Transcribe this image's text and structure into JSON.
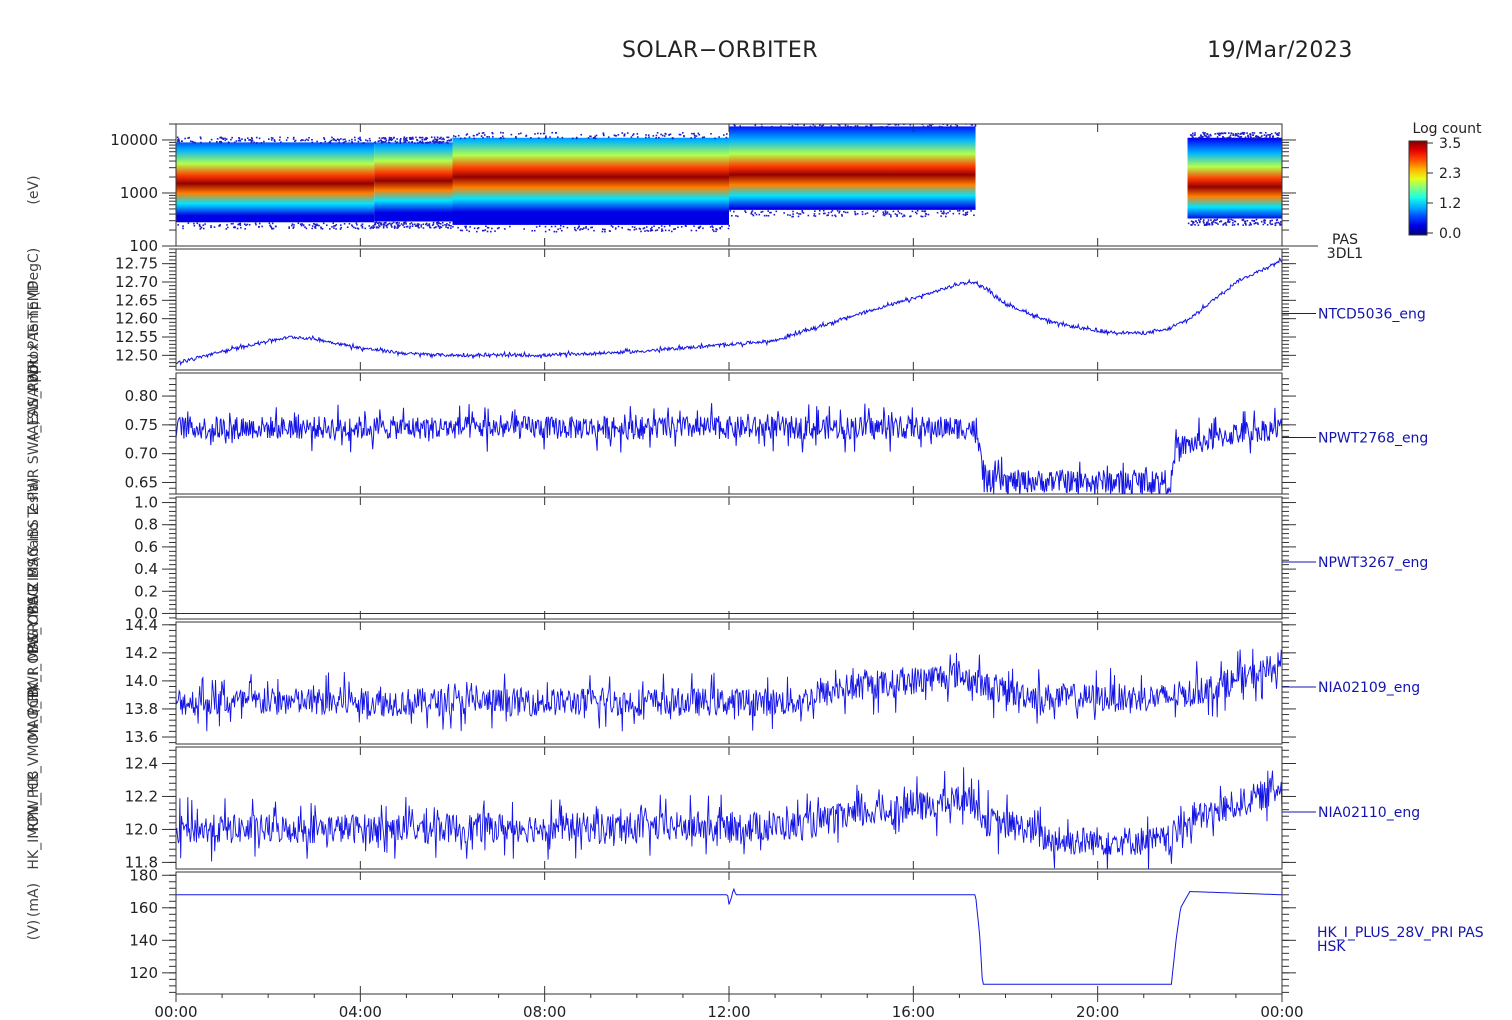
{
  "header": {
    "title": "SOLAR−ORBITER",
    "date": "19/Mar/2023"
  },
  "chart_data": {
    "type": "line",
    "x_tick_labels": [
      "00:00",
      "04:00",
      "08:00",
      "12:00",
      "16:00",
      "20:00",
      "00:00"
    ],
    "x_range_hours": [
      0,
      24
    ],
    "left_axis_labels": [
      "(eV)",
      "Approx Temp (DegC)",
      "(A)",
      "SWA PDU PAS TEMP",
      "PWR SWA_EAS_PWR",
      "(nano Tesla)",
      "PWR MAG IBS Z",
      "PWR MAG IBS Y",
      "PWR MAG OBS Z",
      "MAG_HK_I_OBS_Y",
      "(nT)",
      "RPW_HK_VMON_PCB",
      "HK_IMON_PCB",
      "(mA)",
      "(V)"
    ],
    "panels": [
      {
        "kind": "spectrogram",
        "name": "PAS 3DL1",
        "right_label_lines": [
          "PAS",
          "3DL1"
        ],
        "y_scale": "log",
        "y_range": [
          100,
          20000
        ],
        "y_ticks": [
          "10000",
          "1000",
          "100"
        ],
        "colorbar": {
          "title": "Log count",
          "ticks": [
            "3.5",
            "2.3",
            "1.2",
            "0.0"
          ],
          "range": [
            0,
            3.5
          ]
        },
        "data_gaps_hours": [
          [
            17.35,
            21.95
          ]
        ],
        "segments": [
          {
            "t": [
              0,
              4.3
            ],
            "e_min": 280,
            "e_max": 9000,
            "peak_e": 1500
          },
          {
            "t": [
              4.3,
              6.0
            ],
            "e_min": 290,
            "e_max": 9000,
            "peak_e": 1700
          },
          {
            "t": [
              6.0,
              12.0
            ],
            "e_min": 250,
            "e_max": 11000,
            "peak_e": 2000
          },
          {
            "t": [
              12.0,
              17.35
            ],
            "e_min": 480,
            "e_max": 18000,
            "peak_e": 2200
          },
          {
            "t": [
              21.95,
              24.0
            ],
            "e_min": 330,
            "e_max": 11000,
            "peak_e": 1300
          }
        ]
      },
      {
        "kind": "line",
        "name": "NTCD5036_eng",
        "y_range": [
          12.46,
          12.79
        ],
        "y_ticks": [
          12.5,
          12.55,
          12.6,
          12.65,
          12.7,
          12.75
        ],
        "y_tick_labels": [
          "12.50",
          "12.55",
          "12.60",
          "12.65",
          "12.70",
          "12.75"
        ],
        "points": [
          [
            0,
            12.48
          ],
          [
            1,
            12.51
          ],
          [
            2,
            12.54
          ],
          [
            2.5,
            12.55
          ],
          [
            3,
            12.545
          ],
          [
            4,
            12.52
          ],
          [
            5,
            12.505
          ],
          [
            6,
            12.5
          ],
          [
            8,
            12.5
          ],
          [
            10,
            12.51
          ],
          [
            12,
            12.53
          ],
          [
            13,
            12.54
          ],
          [
            14,
            12.58
          ],
          [
            15,
            12.62
          ],
          [
            16,
            12.655
          ],
          [
            17,
            12.695
          ],
          [
            17.3,
            12.7
          ],
          [
            17.6,
            12.68
          ],
          [
            18,
            12.64
          ],
          [
            19,
            12.59
          ],
          [
            20,
            12.565
          ],
          [
            21,
            12.56
          ],
          [
            21.5,
            12.57
          ],
          [
            22,
            12.6
          ],
          [
            23,
            12.7
          ],
          [
            24,
            12.76
          ]
        ],
        "noise": 0.004
      },
      {
        "kind": "line",
        "name": "NPWT2768_eng",
        "y_range": [
          0.63,
          0.84
        ],
        "y_ticks": [
          0.65,
          0.7,
          0.75,
          0.8
        ],
        "y_tick_labels": [
          "0.65",
          "0.70",
          "0.75",
          "0.80"
        ],
        "points": [
          [
            0,
            0.745
          ],
          [
            17.3,
            0.745
          ],
          [
            17.6,
            0.652
          ],
          [
            21.6,
            0.652
          ],
          [
            21.7,
            0.71
          ],
          [
            23.0,
            0.735
          ],
          [
            24,
            0.745
          ]
        ],
        "noise": 0.02
      },
      {
        "kind": "line",
        "name": "NPWT3267_eng",
        "y_range": [
          -0.05,
          1.05
        ],
        "y_ticks": [
          0,
          0.2,
          0.4,
          0.6,
          0.8,
          1.0
        ],
        "y_tick_labels": [
          "0.0",
          "0.2",
          "0.4",
          "0.6",
          "0.8",
          "1.0"
        ],
        "points": [
          [
            0,
            0
          ],
          [
            24,
            0
          ]
        ],
        "noise": 0
      },
      {
        "kind": "line",
        "name": "NIA02109_eng",
        "y_range": [
          13.55,
          14.42
        ],
        "y_ticks": [
          13.6,
          13.8,
          14.0,
          14.2,
          14.4
        ],
        "y_tick_labels": [
          "13.6",
          "13.8",
          "14.0",
          "14.2",
          "14.4"
        ],
        "points": [
          [
            0,
            13.85
          ],
          [
            13.5,
            13.85
          ],
          [
            14.5,
            13.95
          ],
          [
            15.5,
            13.98
          ],
          [
            17.0,
            14.05
          ],
          [
            17.5,
            13.97
          ],
          [
            18.0,
            13.92
          ],
          [
            19.0,
            13.88
          ],
          [
            21.5,
            13.88
          ],
          [
            22.5,
            13.95
          ],
          [
            23.5,
            14.05
          ],
          [
            24,
            14.12
          ]
        ],
        "noise": 0.1
      },
      {
        "kind": "line",
        "name": "NIA02110_eng",
        "y_range": [
          11.76,
          12.5
        ],
        "y_ticks": [
          11.8,
          12.0,
          12.2,
          12.4
        ],
        "y_tick_labels": [
          "11.8",
          "12.0",
          "12.2",
          "12.4"
        ],
        "points": [
          [
            0,
            12.0
          ],
          [
            13.5,
            12.02
          ],
          [
            15.0,
            12.1
          ],
          [
            16.5,
            12.15
          ],
          [
            17.2,
            12.2
          ],
          [
            17.6,
            12.05
          ],
          [
            18.5,
            12.0
          ],
          [
            19.0,
            11.93
          ],
          [
            21.5,
            11.93
          ],
          [
            22.0,
            12.05
          ],
          [
            23.0,
            12.15
          ],
          [
            24,
            12.25
          ]
        ],
        "noise": 0.09
      },
      {
        "kind": "line",
        "name": "HK_I_PLUS_28V_PRI PAS HSK",
        "right_label_lines": [
          "HK_I_PLUS_28V_PRI PAS",
          "HSK"
        ],
        "y_range": [
          107,
          182
        ],
        "y_ticks": [
          120,
          140,
          160,
          180
        ],
        "y_tick_labels": [
          "120",
          "140",
          "160",
          "180"
        ],
        "points": [
          [
            0,
            168
          ],
          [
            11.97,
            168
          ],
          [
            12.0,
            162
          ],
          [
            12.05,
            166
          ],
          [
            12.1,
            172
          ],
          [
            12.15,
            168
          ],
          [
            17.35,
            168
          ],
          [
            17.45,
            140
          ],
          [
            17.5,
            113
          ],
          [
            21.6,
            113
          ],
          [
            21.7,
            140
          ],
          [
            21.8,
            160
          ],
          [
            22.0,
            170
          ],
          [
            24,
            168
          ]
        ],
        "noise": 0
      }
    ]
  }
}
